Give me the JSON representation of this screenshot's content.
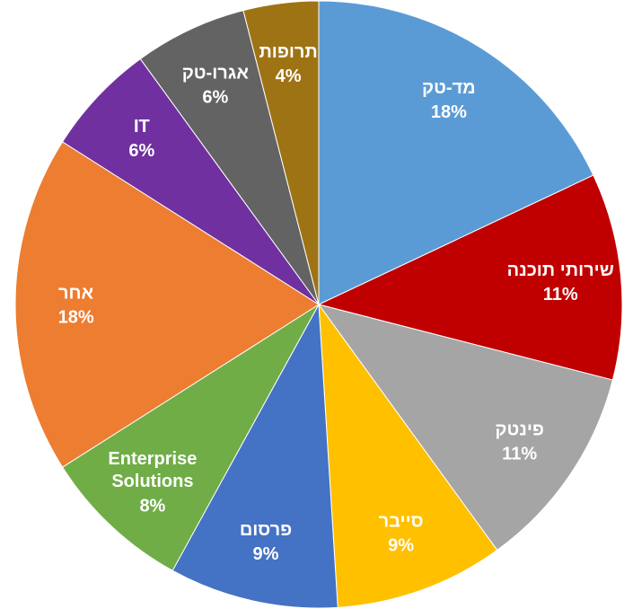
{
  "chart_data": {
    "type": "pie",
    "categories": [
      "מד-טק",
      "שירותי תוכנה",
      "פינטק",
      "סייבר",
      "פרסום",
      "Enterprise Solutions",
      "אחר",
      "IT",
      "אגרו-טק",
      "תרופות"
    ],
    "values": [
      18,
      11,
      11,
      9,
      9,
      8,
      18,
      6,
      6,
      4
    ],
    "value_labels": [
      "18%",
      "11%",
      "11%",
      "9%",
      "9%",
      "8%",
      "18%",
      "6%",
      "6%",
      "4%"
    ],
    "colors": [
      "#5b9bd5",
      "#c00000",
      "#a5a5a5",
      "#ffc000",
      "#4472c4",
      "#70ad47",
      "#ed7d31",
      "#7030a0",
      "#636363",
      "#9e7314"
    ]
  }
}
